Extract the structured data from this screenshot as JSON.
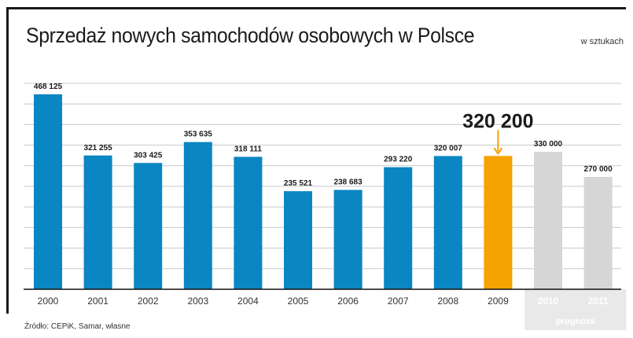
{
  "header": {
    "title": "Sprzedaż nowych samochodów osobowych w Polsce",
    "unit_note": "w sztukach"
  },
  "footer": {
    "source": "Źródło: CEPiK, Samar, własne"
  },
  "chart_data": {
    "type": "bar",
    "title": "Sprzedaż nowych samochodów osobowych w Polsce",
    "unit": "w sztukach",
    "categories": [
      "2000",
      "2001",
      "2002",
      "2003",
      "2004",
      "2005",
      "2006",
      "2007",
      "2008",
      "2009",
      "2010",
      "2011"
    ],
    "values": [
      468125,
      321255,
      303425,
      353635,
      318111,
      235521,
      238683,
      293220,
      320007,
      320200,
      330000,
      270000
    ],
    "value_labels": [
      "468 125",
      "321 255",
      "303 425",
      "353 635",
      "318 111",
      "235 521",
      "238 683",
      "293 220",
      "320 007",
      "320 200",
      "330 000",
      "270 000"
    ],
    "bar_kind": [
      "actual",
      "actual",
      "actual",
      "actual",
      "actual",
      "actual",
      "actual",
      "actual",
      "actual",
      "highlight",
      "forecast",
      "forecast"
    ],
    "highlight_index": 9,
    "forecast_label": "prognoza",
    "ylim": [
      0,
      500000
    ],
    "grid": true,
    "colors": {
      "actual": "#0a86c3",
      "highlight": "#f5a300",
      "forecast": "#d6d6d6",
      "forecast_band": "#e9e9e9",
      "grid": "#c8c8c8",
      "axis": "#111111"
    }
  }
}
